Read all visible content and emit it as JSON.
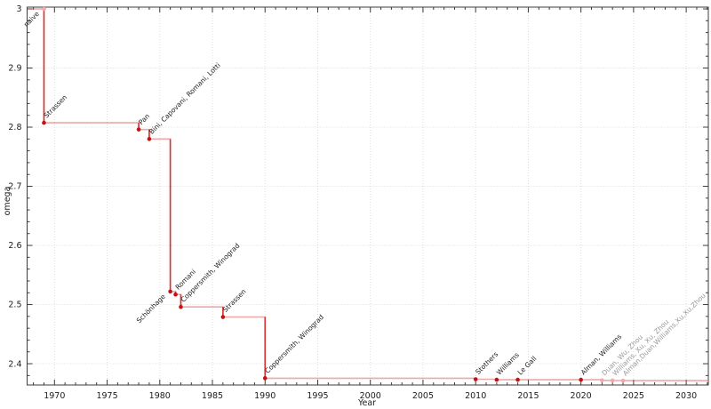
{
  "chart_data": {
    "type": "line",
    "subtype": "step-post",
    "description": "History of the matrix multiplication exponent omega over time",
    "xlabel": "Year",
    "ylabel": "omega",
    "xlim": [
      1967.4,
      2032.1
    ],
    "ylim": [
      2.364,
      3.003
    ],
    "x_major_ticks": [
      1970,
      1975,
      1980,
      1985,
      1990,
      1995,
      2000,
      2005,
      2010,
      2015,
      2020,
      2025,
      2030
    ],
    "x_minor_step": 1,
    "y_major_ticks": [
      2.4,
      2.5,
      2.6,
      2.7,
      2.8,
      2.9,
      3
    ],
    "y_major_tick_labels": [
      "2.4",
      "2.5",
      "2.6",
      "2.7",
      "2.8",
      "2.9",
      "3"
    ],
    "y_minor_step": 0.02,
    "grid": "dotted-major",
    "legend": "none",
    "colors": {
      "line": "#e05050",
      "line_vertical": "#d82727",
      "marker": "#c21313",
      "muted_marker": "#f2a8a8",
      "label": "#1c1c1c",
      "muted_label": "#999999",
      "grid": "#dcdcdc",
      "spine": "#3c3c3c",
      "tick_label": "#1c1c1c"
    },
    "points": [
      {
        "year": 1969,
        "omega": 3,
        "label": "naive",
        "label_side": "below",
        "muted_marker": true,
        "muted_label": false
      },
      {
        "year": 1969,
        "omega": 2.8074,
        "label": "Strassen",
        "label_side": "above",
        "muted_marker": false,
        "muted_label": false
      },
      {
        "year": 1978,
        "omega": 2.796,
        "label": "Pan",
        "label_side": "above",
        "muted_marker": false,
        "muted_label": false
      },
      {
        "year": 1979,
        "omega": 2.78,
        "label": "Bini, Capovani, Romani, Lotti",
        "label_side": "above",
        "muted_marker": false,
        "muted_label": false
      },
      {
        "year": 1981,
        "omega": 2.522,
        "label": "Schönhage",
        "label_side": "below",
        "muted_marker": false,
        "muted_label": false
      },
      {
        "year": 1981.5,
        "omega": 2.517,
        "label": "Romani",
        "label_side": "above",
        "muted_marker": false,
        "muted_label": false
      },
      {
        "year": 1982,
        "omega": 2.496,
        "label": "Coppersmith, Winograd",
        "label_side": "above",
        "muted_marker": false,
        "muted_label": false
      },
      {
        "year": 1986,
        "omega": 2.479,
        "label": "Strassen",
        "label_side": "above",
        "muted_marker": false,
        "muted_label": false
      },
      {
        "year": 1990,
        "omega": 2.3755,
        "label": "Coppersmith, Winograd",
        "label_side": "above",
        "muted_marker": false,
        "muted_label": false
      },
      {
        "year": 2010,
        "omega": 2.3737,
        "label": "Stothers",
        "label_side": "above",
        "muted_marker": false,
        "muted_label": false
      },
      {
        "year": 2012,
        "omega": 2.3729,
        "label": "Williams",
        "label_side": "above",
        "muted_marker": false,
        "muted_label": false
      },
      {
        "year": 2014,
        "omega": 2.3728639,
        "label": "Le Gall",
        "label_side": "above",
        "muted_marker": false,
        "muted_label": false
      },
      {
        "year": 2020,
        "omega": 2.3728596,
        "label": "Alman, Williams",
        "label_side": "above",
        "muted_marker": false,
        "muted_label": false
      },
      {
        "year": 2022,
        "omega": 2.371866,
        "label": "Duan, Wu, Zhou",
        "label_side": "above",
        "muted_marker": true,
        "muted_label": true
      },
      {
        "year": 2023,
        "omega": 2.371552,
        "label": "Williams, Xu, Xu, Zhou",
        "label_side": "above",
        "muted_marker": true,
        "muted_label": true
      },
      {
        "year": 2024,
        "omega": 2.371339,
        "label": "Alman,Duan,Williams,Xu,Xu,Zhou",
        "label_side": "above",
        "muted_marker": true,
        "muted_label": true
      }
    ]
  }
}
